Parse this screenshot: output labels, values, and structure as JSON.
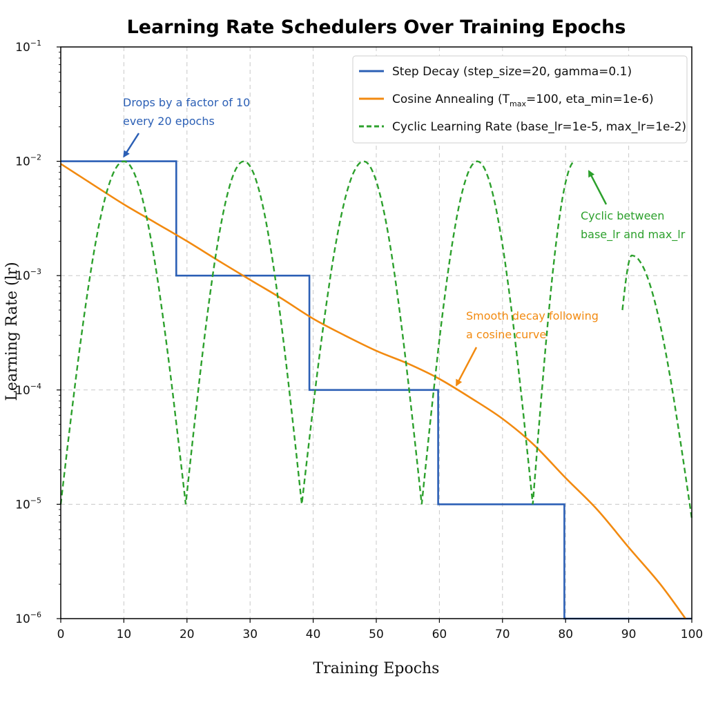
{
  "chart_data": {
    "type": "line",
    "title": "Learning Rate Schedulers Over Training Epochs",
    "xlabel": "Training Epochs",
    "ylabel": "Learning Rate (lr)",
    "xlim": [
      0,
      100
    ],
    "ylim": [
      1e-06,
      0.1
    ],
    "yscale": "log",
    "grid": true,
    "legend_position": "top-right",
    "x_ticks": [
      0,
      10,
      20,
      30,
      40,
      50,
      60,
      70,
      80,
      90,
      100
    ],
    "y_ticks": [
      {
        "value": 1e-06,
        "base": "10",
        "exp": "−6"
      },
      {
        "value": 1e-05,
        "base": "10",
        "exp": "−5"
      },
      {
        "value": 0.0001,
        "base": "10",
        "exp": "−4"
      },
      {
        "value": 0.001,
        "base": "10",
        "exp": "−3"
      },
      {
        "value": 0.01,
        "base": "10",
        "exp": "−2"
      },
      {
        "value": 0.1,
        "base": "10",
        "exp": "−1"
      }
    ],
    "series": [
      {
        "name": "Step Decay (step_size=20, gamma=0.1)",
        "color": "#2b5fb5",
        "style": "solid",
        "x": [
          0,
          18.3,
          18.3,
          39.4,
          39.4,
          59.8,
          59.8,
          79.8,
          79.8,
          100
        ],
        "y": [
          0.01,
          0.01,
          0.001,
          0.001,
          0.0001,
          0.0001,
          1e-05,
          1e-05,
          1e-06,
          1e-06
        ]
      },
      {
        "name": "Cosine Annealing (T_max=100, eta_min=1e-6)",
        "name_parts": [
          "Cosine Annealing (T",
          "max",
          "=100, eta_min=1e-6)"
        ],
        "color": "#f28a10",
        "style": "solid",
        "x": [
          0,
          5,
          10,
          15,
          20,
          25,
          30,
          35,
          40,
          45,
          50,
          55,
          60,
          65,
          70,
          75,
          80,
          85,
          90,
          95,
          99
        ],
        "y": [
          0.0095,
          0.0063,
          0.0042,
          0.0029,
          0.002,
          0.00135,
          0.00092,
          0.00063,
          0.00042,
          0.0003,
          0.00022,
          0.00017,
          0.000125,
          8.5e-05,
          5.6e-05,
          3.3e-05,
          1.7e-05,
          9e-06,
          4.2e-06,
          2e-06,
          1e-06
        ]
      },
      {
        "name": "Cyclic Learning Rate (base_lr=1e-5, max_lr=1e-2)",
        "color": "#2ca02c",
        "style": "dashed",
        "segments": [
          {
            "x": [
              0,
              10,
              19.8,
              29,
              38.2,
              48,
              57.2,
              66,
              74.8,
              81.5
            ],
            "y": [
              1e-05,
              0.01,
              1e-05,
              0.01,
              1e-05,
              0.01,
              1e-05,
              0.01,
              1e-05,
              0.01
            ]
          },
          {
            "x": [
              89,
              90.5,
              100
            ],
            "y": [
              0.0005,
              0.0015,
              7.5e-06
            ]
          }
        ]
      }
    ],
    "annotations": [
      {
        "lines": [
          "Drops by a factor of 10",
          "every 20 epochs"
        ],
        "color": "#2b5fb5",
        "target_x": 10,
        "target_y": 0.011
      },
      {
        "lines": [
          "Smooth decay following",
          "a cosine curve"
        ],
        "color": "#f28a10",
        "target_x": 62.7,
        "target_y": 0.00011
      },
      {
        "lines": [
          "Cyclic between",
          "base_lr and max_lr"
        ],
        "color": "#2ca02c",
        "target_x": 83.7,
        "target_y": 0.0082
      }
    ]
  }
}
